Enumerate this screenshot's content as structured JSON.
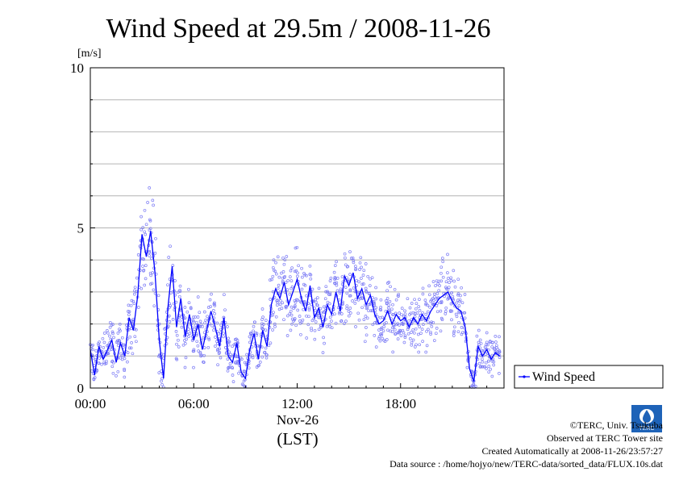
{
  "chart_data": {
    "type": "line",
    "title": "Wind Speed at 29.5m / 2008-11-26",
    "ylabel": "[m/s]",
    "xlabel": "(LST)",
    "x_date_label": "Nov-26",
    "ylim": [
      0,
      10
    ],
    "xlim": [
      "00:00",
      "24:00"
    ],
    "y_ticks": [
      "0",
      "5",
      "10"
    ],
    "x_ticks": [
      "00:00",
      "06:00",
      "12:00",
      "18:00"
    ],
    "grid": true,
    "legend": {
      "placement": "right",
      "label": "Wind Speed"
    },
    "series": [
      {
        "name": "Wind Speed",
        "color": "#0000ff",
        "x_hours": [
          0.0,
          0.25,
          0.5,
          0.75,
          1.0,
          1.25,
          1.5,
          1.75,
          2.0,
          2.25,
          2.5,
          2.75,
          3.0,
          3.25,
          3.5,
          3.75,
          4.0,
          4.25,
          4.5,
          4.75,
          5.0,
          5.25,
          5.5,
          5.75,
          6.0,
          6.25,
          6.5,
          6.75,
          7.0,
          7.25,
          7.5,
          7.75,
          8.0,
          8.25,
          8.5,
          8.75,
          9.0,
          9.25,
          9.5,
          9.75,
          10.0,
          10.25,
          10.5,
          10.75,
          11.0,
          11.25,
          11.5,
          11.75,
          12.0,
          12.25,
          12.5,
          12.75,
          13.0,
          13.25,
          13.5,
          13.75,
          14.0,
          14.25,
          14.5,
          14.75,
          15.0,
          15.25,
          15.5,
          15.75,
          16.0,
          16.25,
          16.5,
          16.75,
          17.0,
          17.25,
          17.5,
          17.75,
          18.0,
          18.25,
          18.5,
          18.75,
          19.0,
          19.25,
          19.5,
          19.75,
          20.0,
          20.25,
          20.5,
          20.75,
          21.0,
          21.25,
          21.5,
          21.75,
          22.0,
          22.25,
          22.5,
          22.75,
          23.0,
          23.25,
          23.5,
          23.75
        ],
        "values": [
          1.2,
          0.4,
          1.3,
          0.9,
          1.2,
          1.5,
          0.8,
          1.4,
          1.0,
          2.2,
          1.8,
          2.9,
          4.8,
          4.1,
          4.9,
          3.6,
          1.5,
          0.3,
          2.5,
          3.8,
          1.9,
          2.8,
          1.6,
          2.3,
          1.5,
          2.0,
          1.2,
          1.8,
          2.4,
          1.9,
          1.3,
          2.2,
          1.0,
          0.8,
          1.4,
          0.5,
          0.3,
          1.2,
          1.7,
          0.9,
          1.8,
          1.3,
          2.6,
          3.1,
          2.8,
          3.3,
          2.6,
          3.0,
          3.4,
          2.8,
          2.4,
          3.2,
          2.2,
          2.5,
          1.9,
          2.6,
          2.3,
          3.0,
          2.4,
          3.5,
          3.2,
          3.6,
          2.8,
          3.1,
          2.6,
          2.9,
          2.3,
          2.0,
          2.1,
          2.4,
          2.0,
          2.3,
          2.1,
          2.2,
          1.9,
          2.2,
          2.0,
          2.3,
          2.1,
          2.4,
          2.6,
          2.8,
          2.9,
          3.0,
          2.7,
          2.5,
          2.4,
          1.9,
          0.6,
          0.2,
          1.3,
          1.0,
          1.2,
          0.9,
          1.1,
          1.0
        ]
      }
    ]
  },
  "credits": {
    "copyright": "©TERC, Univ. Tsukuba",
    "observed": "Observed at TERC Tower site",
    "created": "Created Automatically at 2008-11-26/23:57:27",
    "source": "Data source : /home/hojyo/new/TERC-data/sorted_data/FLUX.10s.dat"
  },
  "logo_text": "TERC"
}
